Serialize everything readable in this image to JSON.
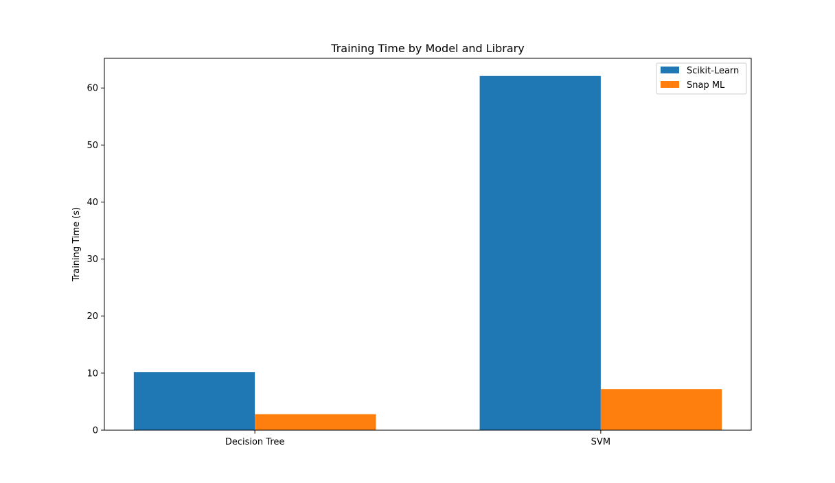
{
  "chart_data": {
    "type": "bar",
    "title": "Training Time by Model and Library",
    "xlabel": "",
    "ylabel": "Training Time (s)",
    "categories": [
      "Decision Tree",
      "SVM"
    ],
    "series": [
      {
        "name": "Scikit-Learn",
        "values": [
          10.2,
          62.1
        ],
        "color": "#1f77b4"
      },
      {
        "name": "Snap ML",
        "values": [
          2.8,
          7.2
        ],
        "color": "#ff7f0e"
      }
    ],
    "ylim": [
      0,
      65.2
    ],
    "yticks": [
      0,
      10,
      20,
      30,
      40,
      50,
      60
    ],
    "grid": false,
    "legend_position": "top-right"
  }
}
